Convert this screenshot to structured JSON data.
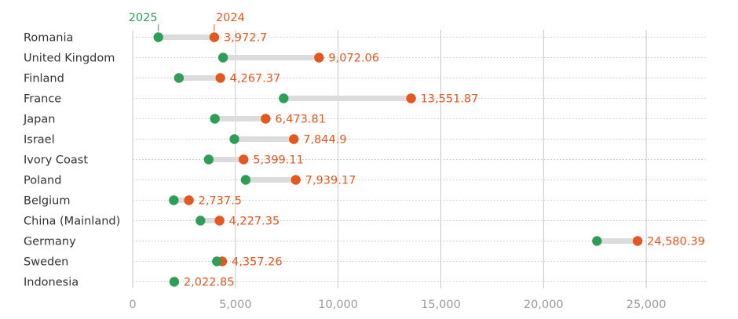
{
  "chart_data": {
    "type": "dumbbell",
    "legend": {
      "start_label": "2025",
      "end_label": "2024"
    },
    "colors": {
      "start": "#2e9e55",
      "end": "#e4571e",
      "connector": "#dcdcdc",
      "gridline": "#c8c8c8",
      "row_rule": "#c8c8c8"
    },
    "x_ticks": [
      {
        "value": 0,
        "label": "0"
      },
      {
        "value": 5000,
        "label": "5,000"
      },
      {
        "value": 10000,
        "label": "10,000"
      },
      {
        "value": 15000,
        "label": "15,000"
      },
      {
        "value": 20000,
        "label": "20,000"
      },
      {
        "value": 25000,
        "label": "25,000"
      }
    ],
    "xlim": [
      0,
      27900
    ],
    "rows": [
      {
        "category": "Romania",
        "start": 1250,
        "end": 3972.7,
        "end_label": "3,972.7"
      },
      {
        "category": "United Kingdom",
        "start": 4400,
        "end": 9072.06,
        "end_label": "9,072.06"
      },
      {
        "category": "Finland",
        "start": 2250,
        "end": 4267.37,
        "end_label": "4,267.37"
      },
      {
        "category": "France",
        "start": 7350,
        "end": 13551.87,
        "end_label": "13,551.87"
      },
      {
        "category": "Japan",
        "start": 4000,
        "end": 6473.81,
        "end_label": "6,473.81"
      },
      {
        "category": "Israel",
        "start": 4950,
        "end": 7844.9,
        "end_label": "7,844.9"
      },
      {
        "category": "Ivory Coast",
        "start": 3700,
        "end": 5399.11,
        "end_label": "5,399.11"
      },
      {
        "category": "Poland",
        "start": 5500,
        "end": 7939.17,
        "end_label": "7,939.17"
      },
      {
        "category": "Belgium",
        "start": 2000,
        "end": 2737.5,
        "end_label": "2,737.5"
      },
      {
        "category": "China (Mainland)",
        "start": 3300,
        "end": 4227.35,
        "end_label": "4,227.35"
      },
      {
        "category": "Germany",
        "start": 22600,
        "end": 24580.39,
        "end_label": "24,580.39"
      },
      {
        "category": "Sweden",
        "start": 4100,
        "end": 4357.26,
        "end_label": "4,357.26"
      },
      {
        "category": "Indonesia",
        "start": 2022.85,
        "end": 2022.85,
        "end_label": "2,022.85"
      }
    ]
  }
}
